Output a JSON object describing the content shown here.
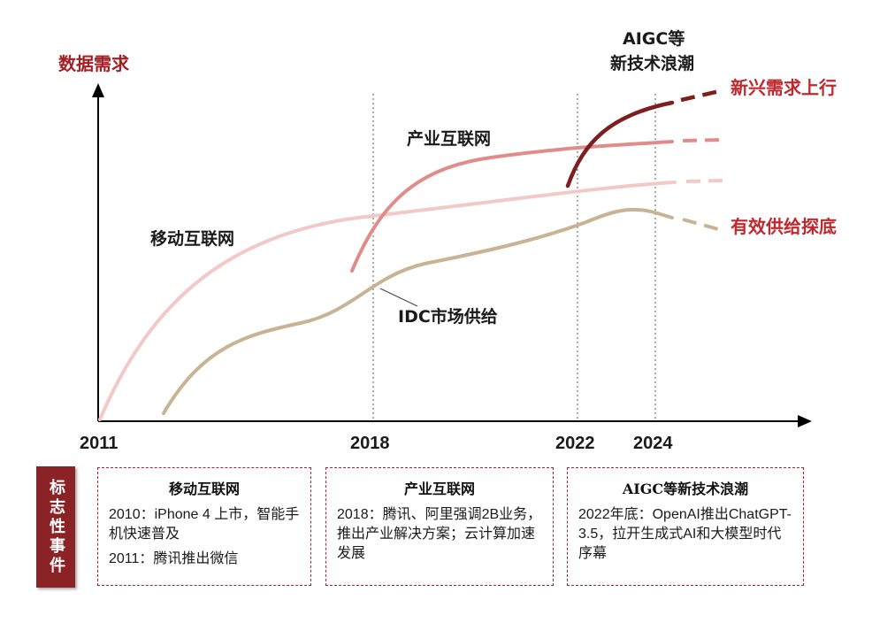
{
  "diagram": {
    "y_axis_label": "数据需求",
    "x_ticks": [
      "2011",
      "2018",
      "2022",
      "2024"
    ],
    "curves": {
      "mobile": "移动互联网",
      "industrial": "产业互联网",
      "idc": "IDC市场供给",
      "aigc_line1": "AIGC等",
      "aigc_line2": "新技术浪潮"
    },
    "annotations": {
      "emerging_demand": "新兴需求上行",
      "supply_bottom": "有效供给探底"
    },
    "colors": {
      "mobile": "#f2c9c6",
      "industrial": "#e08c8a",
      "aigc": "#7e1f1f",
      "idc": "#c8b394",
      "accent": "#a31f24"
    }
  },
  "events": {
    "side_label": "标志性事件",
    "boxes": [
      {
        "title": "移动互联网",
        "lines": [
          "2010：iPhone 4 上市，智能手机快速普及",
          "2011：腾讯推出微信"
        ]
      },
      {
        "title": "产业互联网",
        "lines": [
          "2018：腾讯、阿里强调2B业务，推出产业解决方案；云计算加速发展"
        ]
      },
      {
        "title": "AIGC等新技术浪潮",
        "lines": [
          "2022年底：OpenAI推出ChatGPT-3.5，拉开生成式AI和大模型时代序幕"
        ]
      }
    ]
  }
}
